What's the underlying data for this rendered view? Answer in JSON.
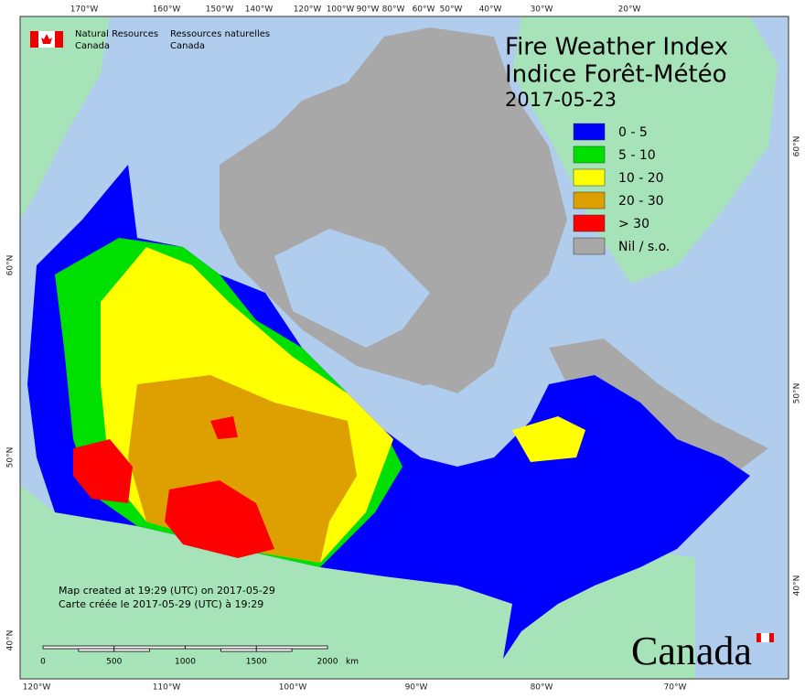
{
  "header": {
    "title_en": "Fire Weather Index",
    "title_fr": "Indice Forêt-Météo",
    "date": "2017-05-23"
  },
  "agency": {
    "en_name": "Natural Resources",
    "en_country": "Canada",
    "fr_name": "Ressources naturelles",
    "fr_country": "Canada"
  },
  "legend": [
    {
      "label": "0 - 5",
      "color": "#0000ff"
    },
    {
      "label": "5 - 10",
      "color": "#00e000"
    },
    {
      "label": "10 - 20",
      "color": "#ffff00"
    },
    {
      "label": "20 - 30",
      "color": "#dda000"
    },
    {
      "label": "> 30",
      "color": "#ff0000"
    },
    {
      "label": "Nil / s.o.",
      "color": "#a8a8a8"
    }
  ],
  "graticule": {
    "top": [
      "170°W",
      "160°W",
      "150°W",
      "140°W",
      "120°W",
      "100°W",
      "90°W",
      "80°W",
      "60°W",
      "50°W",
      "40°W",
      "30°W",
      "20°W"
    ],
    "bottom": [
      "120°W",
      "110°W",
      "100°W",
      "90°W",
      "80°W",
      "70°W"
    ],
    "left": [
      "60°N",
      "50°N",
      "40°N"
    ],
    "right": [
      "60°N",
      "50°N",
      "40°N"
    ]
  },
  "scale_bar": {
    "ticks": [
      0,
      500,
      1000,
      1500,
      2000
    ],
    "unit": "km"
  },
  "notes": [
    "Map created at 19:29 (UTC) on 2017-05-29",
    "Carte créée le 2017-05-29 (UTC) à 19:29"
  ],
  "wordmark": "Canada"
}
